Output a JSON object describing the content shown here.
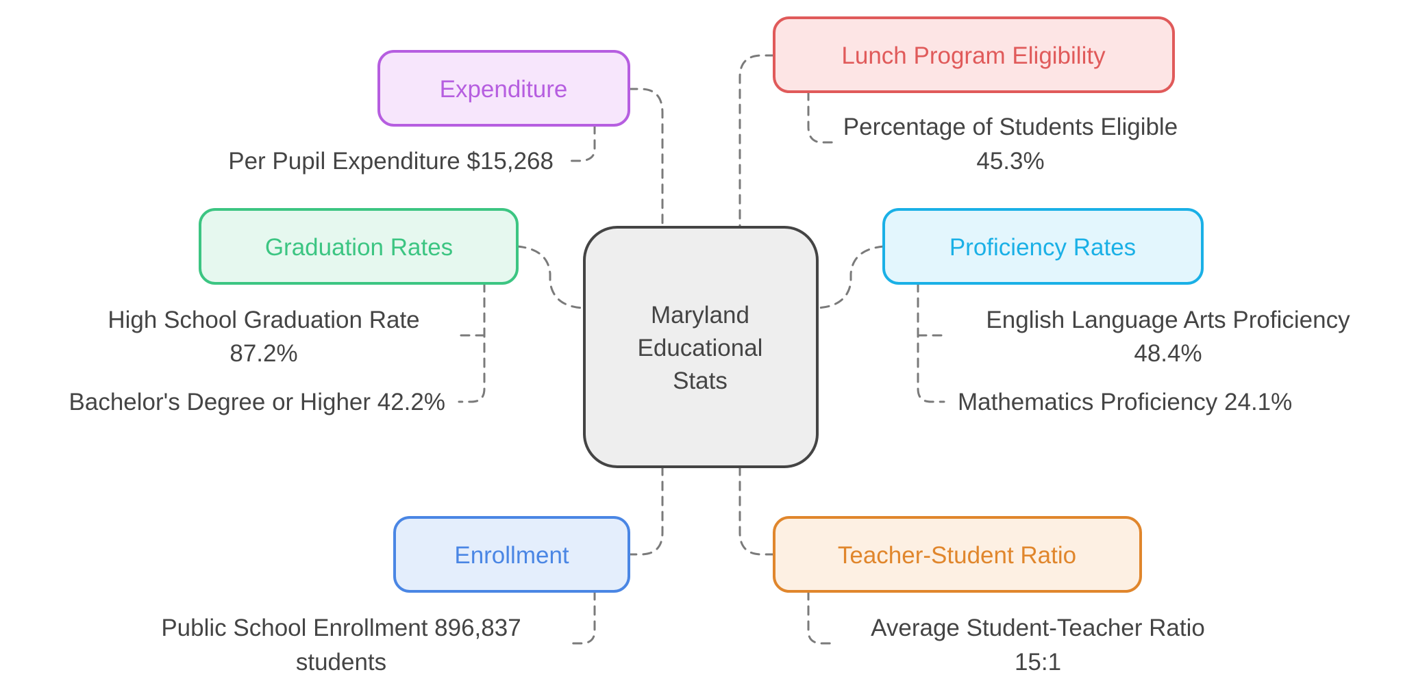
{
  "center": {
    "lines": [
      "Maryland",
      "Educational",
      "Stats"
    ],
    "stroke": "#444444",
    "fill": "#eeeeee"
  },
  "nodes": {
    "expenditure": {
      "label": "Expenditure",
      "stroke": "#b65ee0",
      "fill": "#f7e6fc",
      "details": [
        "Per Pupil Expenditure $15,268"
      ]
    },
    "lunch": {
      "label": "Lunch Program Eligibility",
      "stroke": "#e05a5a",
      "fill": "#fde5e5",
      "details": [
        "Percentage of Students Eligible",
        "45.3%"
      ]
    },
    "graduation": {
      "label": "Graduation Rates",
      "stroke": "#3cc582",
      "fill": "#e6f8ef",
      "details": [
        "High School Graduation Rate",
        "87.2%",
        "Bachelor's Degree or Higher 42.2%"
      ]
    },
    "proficiency": {
      "label": "Proficiency Rates",
      "stroke": "#1ab0e6",
      "fill": "#e3f6fd",
      "details": [
        "English Language Arts Proficiency",
        "48.4%",
        "Mathematics Proficiency 24.1%"
      ]
    },
    "enrollment": {
      "label": "Enrollment",
      "stroke": "#4a86e4",
      "fill": "#e4eefc",
      "details": [
        "Public School Enrollment 896,837",
        "students"
      ]
    },
    "teacher": {
      "label": "Teacher-Student Ratio",
      "stroke": "#e0862c",
      "fill": "#fdf0e3",
      "details": [
        "Average Student-Teacher Ratio",
        "15:1"
      ]
    }
  },
  "connector_color": "#7a7a7a"
}
